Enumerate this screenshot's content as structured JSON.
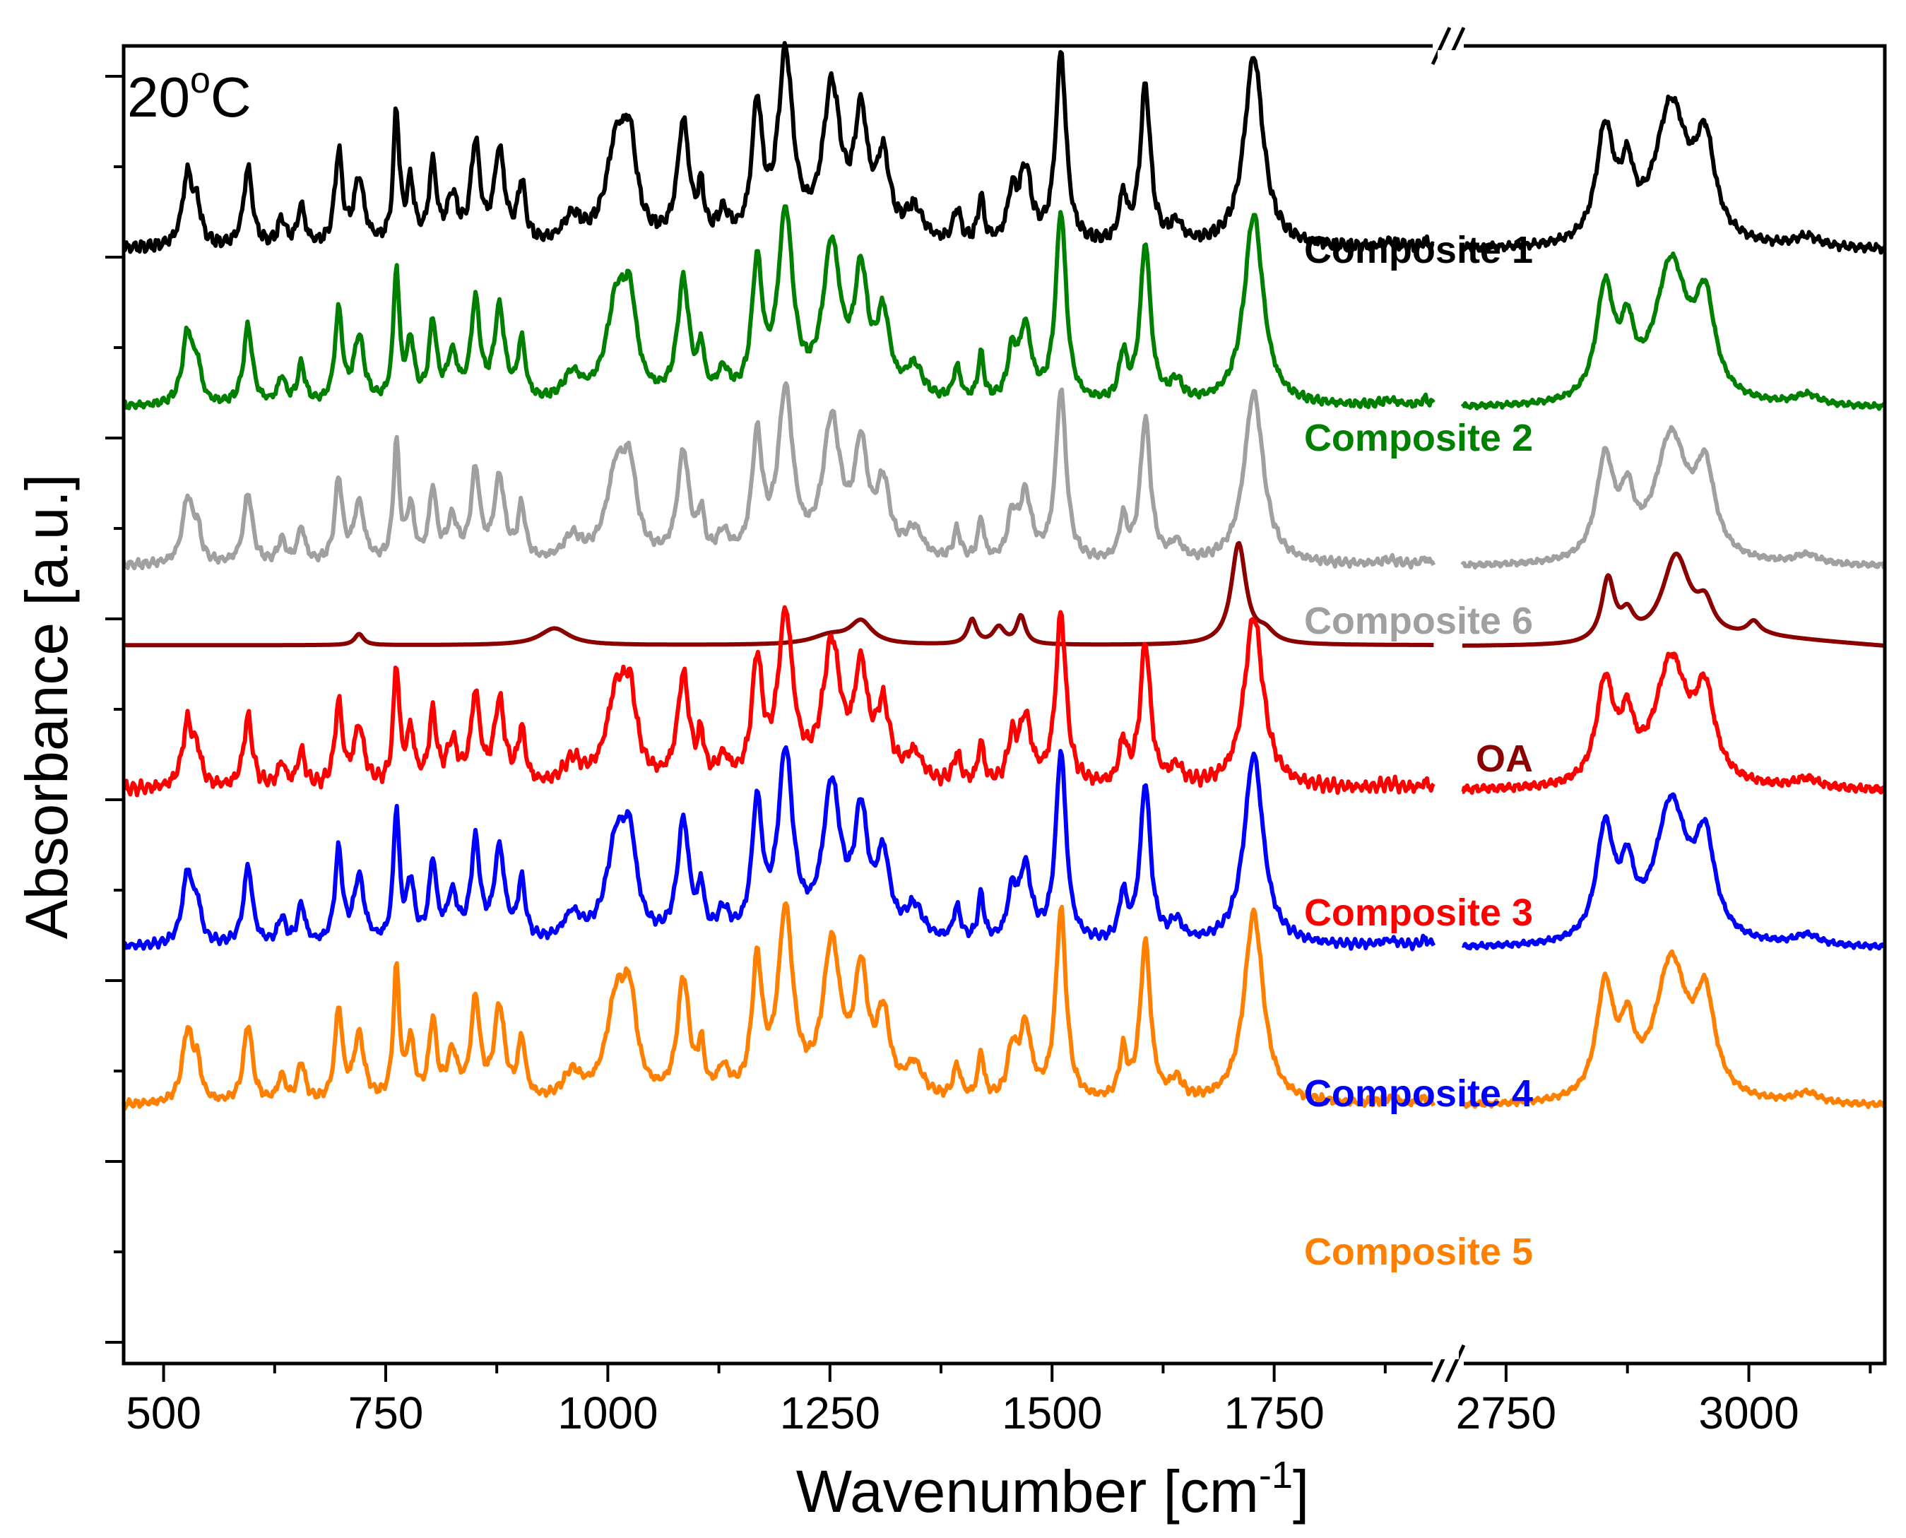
{
  "chart_data": {
    "type": "line",
    "title": "",
    "annotation": "20",
    "annotation_sup": "o",
    "annotation_unit": "C",
    "xlabel": "Wavenumber [cm",
    "xlabel_sup": "-1",
    "xlabel_end": "]",
    "ylabel": "Absorbance [a.u.]",
    "x_break": true,
    "x_segments": [
      {
        "range": [
          455,
          1930
        ],
        "ticks": [
          "500",
          "750",
          "1000",
          "1250",
          "1500",
          "1750"
        ],
        "tick_values": [
          500,
          750,
          1000,
          1250,
          1500,
          1750
        ]
      },
      {
        "range": [
          2705,
          3140
        ],
        "ticks": [
          "2750",
          "3000"
        ],
        "tick_values": [
          2750,
          3000
        ]
      }
    ],
    "ylim": [
      0,
      10
    ],
    "grid": false,
    "peaks_composite": [
      [
        527,
        0.55,
        7
      ],
      [
        538,
        0.25,
        5
      ],
      [
        595,
        0.6,
        6
      ],
      [
        633,
        0.2,
        5
      ],
      [
        655,
        0.3,
        5
      ],
      [
        697,
        0.7,
        5
      ],
      [
        720,
        0.5,
        7
      ],
      [
        762,
        1.0,
        4
      ],
      [
        778,
        0.45,
        5
      ],
      [
        803,
        0.6,
        5
      ],
      [
        825,
        0.35,
        7
      ],
      [
        851,
        0.75,
        6
      ],
      [
        878,
        0.7,
        7
      ],
      [
        903,
        0.45,
        5
      ],
      [
        960,
        0.2,
        12
      ],
      [
        1010,
        0.75,
        14
      ],
      [
        1025,
        0.6,
        9
      ],
      [
        1085,
        0.9,
        8
      ],
      [
        1105,
        0.35,
        4
      ],
      [
        1130,
        0.2,
        8
      ],
      [
        1168,
        1.0,
        7
      ],
      [
        1200,
        1.4,
        10
      ],
      [
        1252,
        1.15,
        12
      ],
      [
        1285,
        0.9,
        9
      ],
      [
        1310,
        0.6,
        9
      ],
      [
        1345,
        0.25,
        12
      ],
      [
        1393,
        0.25,
        5
      ],
      [
        1420,
        0.35,
        4
      ],
      [
        1455,
        0.35,
        6
      ],
      [
        1470,
        0.55,
        8
      ],
      [
        1510,
        1.45,
        7
      ],
      [
        1580,
        0.35,
        5
      ],
      [
        1605,
        1.2,
        7
      ],
      [
        1640,
        0.15,
        8
      ],
      [
        1727,
        1.45,
        13
      ],
      [
        1880,
        0.04,
        12
      ],
      [
        1920,
        0.05,
        5
      ]
    ],
    "peaks_composite_high": [
      [
        2852,
        0.85,
        11
      ],
      [
        2875,
        0.45,
        8
      ],
      [
        2920,
        1.05,
        20
      ],
      [
        2955,
        0.7,
        12
      ],
      [
        3060,
        0.08,
        15
      ]
    ],
    "peaks_oa_low": [
      [
        720,
        0.1,
        6
      ],
      [
        940,
        0.15,
        20
      ],
      [
        1250,
        0.08,
        25
      ],
      [
        1285,
        0.2,
        15
      ],
      [
        1410,
        0.22,
        6
      ],
      [
        1440,
        0.15,
        8
      ],
      [
        1465,
        0.25,
        6
      ],
      [
        1710,
        0.9,
        10
      ],
      [
        1740,
        0.1,
        12
      ]
    ],
    "peaks_oa_high": [
      [
        2855,
        0.55,
        8
      ],
      [
        2875,
        0.2,
        8
      ],
      [
        2925,
        0.75,
        17
      ],
      [
        2955,
        0.25,
        10
      ],
      [
        3005,
        0.12,
        8
      ]
    ],
    "series": [
      {
        "name": "Composite 1",
        "color": "#000000",
        "offset": 8.4,
        "amp": 1.0,
        "noise": 0.03,
        "kind": "composite"
      },
      {
        "name": "Composite 2",
        "color": "#008000",
        "offset": 7.2,
        "amp": 1.0,
        "noise": 0.02,
        "kind": "composite"
      },
      {
        "name": "Composite 6",
        "color": "#A0A0A0",
        "offset": 6.0,
        "amp": 0.9,
        "noise": 0.02,
        "kind": "composite"
      },
      {
        "name": "OA",
        "color": "#8B0000",
        "offset": 5.4,
        "amp": 0.85,
        "noise": 0.0,
        "kind": "oa"
      },
      {
        "name": "Composite 3",
        "color": "#FF0000",
        "offset": 4.3,
        "amp": 0.9,
        "noise": 0.03,
        "kind": "composite"
      },
      {
        "name": "Composite 4",
        "color": "#0000FF",
        "offset": 3.1,
        "amp": 1.0,
        "noise": 0.02,
        "kind": "composite"
      },
      {
        "name": "Composite 5",
        "color": "#FF8000",
        "offset": 1.9,
        "amp": 1.0,
        "noise": 0.02,
        "kind": "composite"
      }
    ]
  }
}
